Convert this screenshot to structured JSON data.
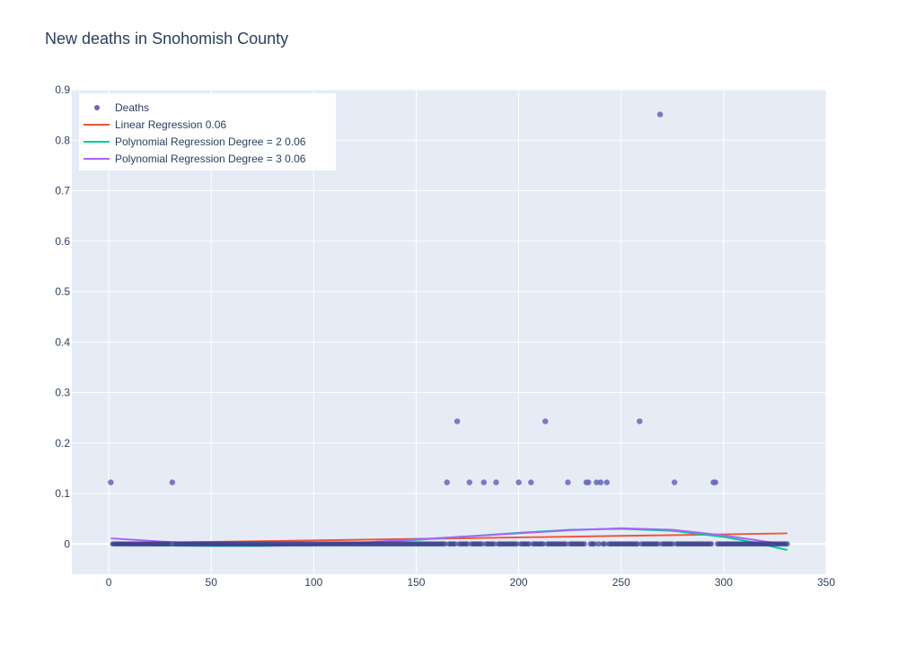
{
  "chart_data": {
    "type": "scatter",
    "title": "New deaths in Snohomish County",
    "xlabel": "",
    "ylabel": "",
    "xlim": [
      -18,
      350
    ],
    "ylim": [
      -0.06,
      0.9
    ],
    "x_ticks": [
      0,
      50,
      100,
      150,
      200,
      250,
      300,
      350
    ],
    "y_ticks": [
      0,
      0.1,
      0.2,
      0.3,
      0.4,
      0.5,
      0.6,
      0.7,
      0.8,
      0.9
    ],
    "grid": true,
    "legend_position": "top-left",
    "colors": {
      "deaths": "#636efa",
      "linear": "#ef553b",
      "poly2": "#00cc96",
      "poly3": "#ab63fa",
      "plot_bg": "#e5ecf6"
    },
    "legend": [
      {
        "name": "Deaths",
        "key": "deaths",
        "kind": "marker"
      },
      {
        "name": "Linear Regression 0.06",
        "key": "linear",
        "kind": "line"
      },
      {
        "name": "Polynomial Regression Degree = 2 0.06",
        "key": "poly2",
        "kind": "line"
      },
      {
        "name": "Polynomial Regression Degree = 3 0.06",
        "key": "poly3",
        "kind": "line"
      }
    ],
    "series": [
      {
        "name": "Deaths",
        "key": "deaths",
        "mode": "markers",
        "x": [
          1,
          31,
          165,
          170,
          176,
          183,
          189,
          200,
          206,
          213,
          224,
          233,
          234,
          238,
          240,
          243,
          259,
          269,
          276,
          295,
          296
        ],
        "y": [
          0.122,
          0.122,
          0.122,
          0.243,
          0.122,
          0.122,
          0.122,
          0.122,
          0.122,
          0.243,
          0.122,
          0.122,
          0.122,
          0.122,
          0.122,
          0.122,
          0.243,
          0.851,
          0.122,
          0.122,
          0.122
        ],
        "zero_days_range": [
          2,
          331
        ]
      },
      {
        "name": "Linear Regression 0.06",
        "key": "linear",
        "mode": "lines",
        "x": [
          1,
          50,
          100,
          150,
          200,
          250,
          300,
          331
        ],
        "y": [
          0.001,
          0.004,
          0.007,
          0.01,
          0.013,
          0.016,
          0.019,
          0.021
        ]
      },
      {
        "name": "Polynomial Regression Degree = 2 0.06",
        "key": "poly2",
        "mode": "lines",
        "x": [
          1,
          25,
          50,
          75,
          100,
          125,
          150,
          175,
          200,
          225,
          250,
          275,
          300,
          315,
          331
        ],
        "y": [
          -0.001,
          -0.003,
          -0.004,
          -0.004,
          -0.002,
          0.002,
          0.008,
          0.015,
          0.022,
          0.028,
          0.03,
          0.026,
          0.014,
          0.003,
          -0.012
        ]
      },
      {
        "name": "Polynomial Regression Degree = 3 0.06",
        "key": "poly3",
        "mode": "lines",
        "x": [
          1,
          25,
          50,
          75,
          100,
          125,
          150,
          175,
          200,
          225,
          250,
          275,
          300,
          315,
          331
        ],
        "y": [
          0.011,
          0.005,
          0.0,
          -0.002,
          -0.001,
          0.003,
          0.009,
          0.015,
          0.021,
          0.027,
          0.031,
          0.028,
          0.017,
          0.008,
          -0.002
        ]
      }
    ]
  }
}
